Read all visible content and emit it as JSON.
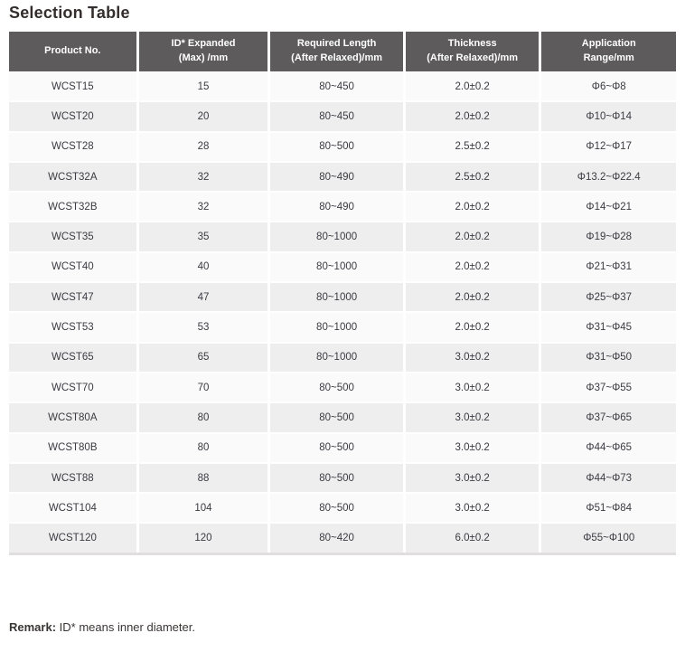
{
  "title": "Selection Table",
  "table": {
    "columns": [
      {
        "line1": "Product No.",
        "line2": ""
      },
      {
        "line1": "ID* Expanded",
        "line2": "(Max) /mm"
      },
      {
        "line1": "Required Length",
        "line2": "(After Relaxed)/mm"
      },
      {
        "line1": "Thickness",
        "line2": "(After Relaxed)/mm"
      },
      {
        "line1": "Application",
        "line2": "Range/mm"
      }
    ],
    "rows": [
      [
        "WCST15",
        "15",
        "80~450",
        "2.0±0.2",
        "Φ6~Φ8"
      ],
      [
        "WCST20",
        "20",
        "80~450",
        "2.0±0.2",
        "Φ10~Φ14"
      ],
      [
        "WCST28",
        "28",
        "80~500",
        "2.5±0.2",
        "Φ12~Φ17"
      ],
      [
        "WCST32A",
        "32",
        "80~490",
        "2.5±0.2",
        "Φ13.2~Φ22.4"
      ],
      [
        "WCST32B",
        "32",
        "80~490",
        "2.0±0.2",
        "Φ14~Φ21"
      ],
      [
        "WCST35",
        "35",
        "80~1000",
        "2.0±0.2",
        "Φ19~Φ28"
      ],
      [
        "WCST40",
        "40",
        "80~1000",
        "2.0±0.2",
        "Φ21~Φ31"
      ],
      [
        "WCST47",
        "47",
        "80~1000",
        "2.0±0.2",
        "Φ25~Φ37"
      ],
      [
        "WCST53",
        "53",
        "80~1000",
        "2.0±0.2",
        "Φ31~Φ45"
      ],
      [
        "WCST65",
        "65",
        "80~1000",
        "3.0±0.2",
        "Φ31~Φ50"
      ],
      [
        "WCST70",
        "70",
        "80~500",
        "3.0±0.2",
        "Φ37~Φ55"
      ],
      [
        "WCST80A",
        "80",
        "80~500",
        "3.0±0.2",
        "Φ37~Φ65"
      ],
      [
        "WCST80B",
        "80",
        "80~500",
        "3.0±0.2",
        "Φ44~Φ65"
      ],
      [
        "WCST88",
        "88",
        "80~500",
        "3.0±0.2",
        "Φ44~Φ73"
      ],
      [
        "WCST104",
        "104",
        "80~500",
        "3.0±0.2",
        "Φ51~Φ84"
      ],
      [
        "WCST120",
        "120",
        "80~420",
        "6.0±0.2",
        "Φ55~Φ100"
      ]
    ]
  },
  "remark": {
    "label": "Remark:",
    "text": "ID* means inner diameter."
  },
  "colors": {
    "header_bg": "#5d5b5b",
    "header_text": "#ffffff",
    "row_light": "#fafafa",
    "row_dark": "#efeeee",
    "body_text": "#3b3a42",
    "title_text": "#332e2c",
    "table_bottom_border": "#e0dede"
  }
}
